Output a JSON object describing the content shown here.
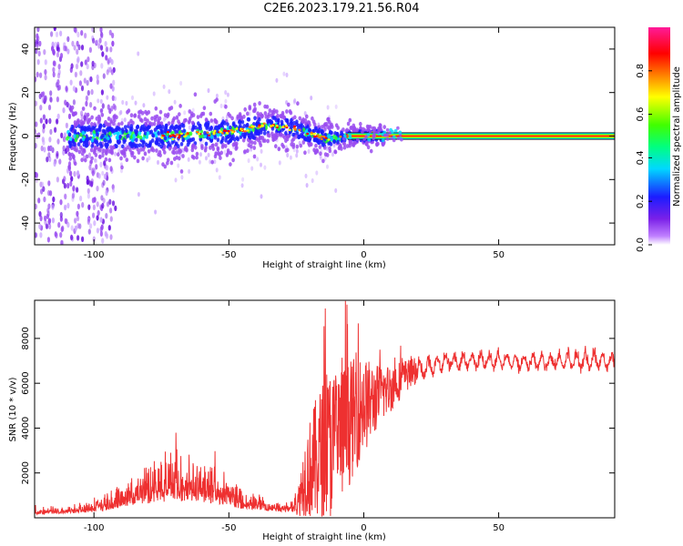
{
  "title": "C2E6.2023.179.21.56.R04",
  "colors": {
    "snr_line": "#ee3030",
    "colormap": [
      "#ffffff",
      "#9a4cf0",
      "#1c1cff",
      "#00d8ff",
      "#28ff28",
      "#ffff00",
      "#ff8000",
      "#ff0000",
      "#ff1a99"
    ]
  },
  "chart_data": [
    {
      "type": "heatmap",
      "xlabel": "Height of straight line (km)",
      "ylabel": "Frequency (Hz)",
      "xlim": [
        -122,
        93
      ],
      "ylim": [
        -50,
        50
      ],
      "x_ticks": [
        -100,
        -50,
        0,
        50
      ],
      "y_ticks": [
        -40,
        -20,
        0,
        20,
        40
      ],
      "colorbar": {
        "label": "Normalized spectral amplitude",
        "range": [
          0,
          1
        ],
        "ticks": [
          "0.0",
          "0.2",
          "0.4",
          "0.6",
          "0.8"
        ]
      },
      "ridge": {
        "x": [
          -108,
          -90,
          -70,
          -50,
          -40,
          -33,
          -28,
          -24,
          -20,
          -15,
          -10,
          -6,
          0,
          93
        ],
        "freq_hz": [
          0,
          0,
          0,
          2,
          4,
          5,
          4,
          3,
          1,
          -1,
          -1,
          0,
          0,
          0
        ]
      },
      "noise_region_x": [
        -122,
        -100
      ]
    },
    {
      "type": "line",
      "xlabel": "Height of straight line (km)",
      "ylabel": "SNR (10 * v/v)",
      "xlim": [
        -122,
        93
      ],
      "ylim": [
        0,
        9700
      ],
      "x_ticks": [
        -100,
        -50,
        0,
        50
      ],
      "y_ticks": [
        2000,
        4000,
        6000,
        8000
      ],
      "envelope": {
        "x": [
          -122,
          -110,
          -100,
          -95,
          -90,
          -85,
          -80,
          -75,
          -70,
          -65,
          -60,
          -55,
          -50,
          -45,
          -40,
          -35,
          -30,
          -25,
          -22,
          -18,
          -15,
          -12,
          -10,
          -8,
          -5,
          -2,
          0,
          3,
          6,
          10,
          15,
          20,
          25,
          30,
          40,
          50,
          60,
          70,
          80,
          93
        ],
        "mean": [
          200,
          250,
          350,
          500,
          700,
          850,
          1000,
          1100,
          1150,
          1100,
          1000,
          900,
          750,
          600,
          500,
          400,
          350,
          400,
          1800,
          2500,
          3000,
          3200,
          3500,
          3800,
          4300,
          4800,
          5000,
          5200,
          5500,
          5800,
          6300,
          6600,
          6800,
          6950,
          7000,
          7000,
          6950,
          7000,
          7050,
          7000
        ],
        "spread": [
          120,
          150,
          250,
          400,
          600,
          800,
          900,
          1000,
          1000,
          950,
          900,
          800,
          700,
          500,
          350,
          250,
          200,
          300,
          1600,
          2500,
          2900,
          3000,
          3000,
          2800,
          2500,
          2200,
          2000,
          1600,
          1200,
          1000,
          700,
          500,
          400,
          350,
          350,
          350,
          350,
          350,
          400,
          350
        ]
      }
    }
  ]
}
